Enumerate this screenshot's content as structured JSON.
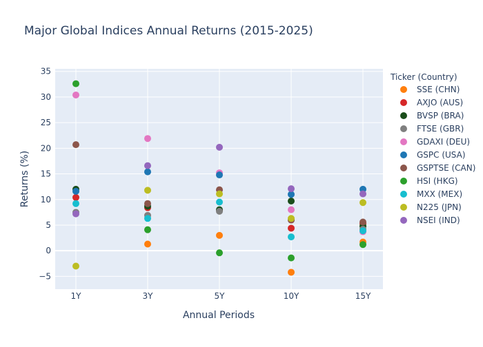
{
  "chart_data": {
    "type": "scatter",
    "title": "Major Global Indices Annual Returns (2015-2025)",
    "xlabel": "Annual Periods",
    "ylabel": "Returns (%)",
    "categories": [
      "1Y",
      "3Y",
      "5Y",
      "10Y",
      "15Y"
    ],
    "ylim": [
      -7.5,
      35.5
    ],
    "yticks": [
      -5,
      0,
      5,
      10,
      15,
      20,
      25,
      30,
      35
    ],
    "grid": true,
    "legend_title": "Ticker (Country)",
    "legend_position": "right",
    "series": [
      {
        "name": "SSE (CHN)",
        "color": "#ff7f0e",
        "values": [
          null,
          1.3,
          3.0,
          -4.2,
          1.7
        ]
      },
      {
        "name": "AXJO (AUS)",
        "color": "#d62728",
        "values": [
          10.4,
          8.4,
          7.9,
          4.4,
          5.3
        ]
      },
      {
        "name": "BVSP (BRA)",
        "color": "#1a4d1a",
        "values": [
          12.0,
          8.7,
          8.0,
          9.7,
          4.8
        ]
      },
      {
        "name": "FTSE (GBR)",
        "color": "#7f7f7f",
        "values": [
          7.5,
          6.9,
          7.7,
          6.0,
          4.2
        ]
      },
      {
        "name": "GDAXI (DEU)",
        "color": "#e377c2",
        "values": [
          30.4,
          21.9,
          15.2,
          8.0,
          3.7
        ]
      },
      {
        "name": "GSPC (USA)",
        "color": "#1f77b4",
        "values": [
          11.6,
          15.4,
          14.8,
          11.0,
          12.0
        ]
      },
      {
        "name": "GSPTSE (CAN)",
        "color": "#8c564b",
        "values": [
          20.7,
          9.2,
          11.9,
          6.0,
          5.6
        ]
      },
      {
        "name": "HSI (HKG)",
        "color": "#2ca02c",
        "values": [
          32.6,
          4.1,
          -0.4,
          -1.4,
          1.2
        ]
      },
      {
        "name": "MXX (MEX)",
        "color": "#17becf",
        "values": [
          9.2,
          6.3,
          9.5,
          2.7,
          3.9
        ]
      },
      {
        "name": "N225 (JPN)",
        "color": "#bcbd22",
        "values": [
          -3.0,
          11.8,
          11.1,
          6.3,
          9.4
        ]
      },
      {
        "name": "NSEI (IND)",
        "color": "#9467bd",
        "values": [
          7.2,
          16.6,
          20.2,
          12.1,
          11.1
        ]
      }
    ]
  }
}
